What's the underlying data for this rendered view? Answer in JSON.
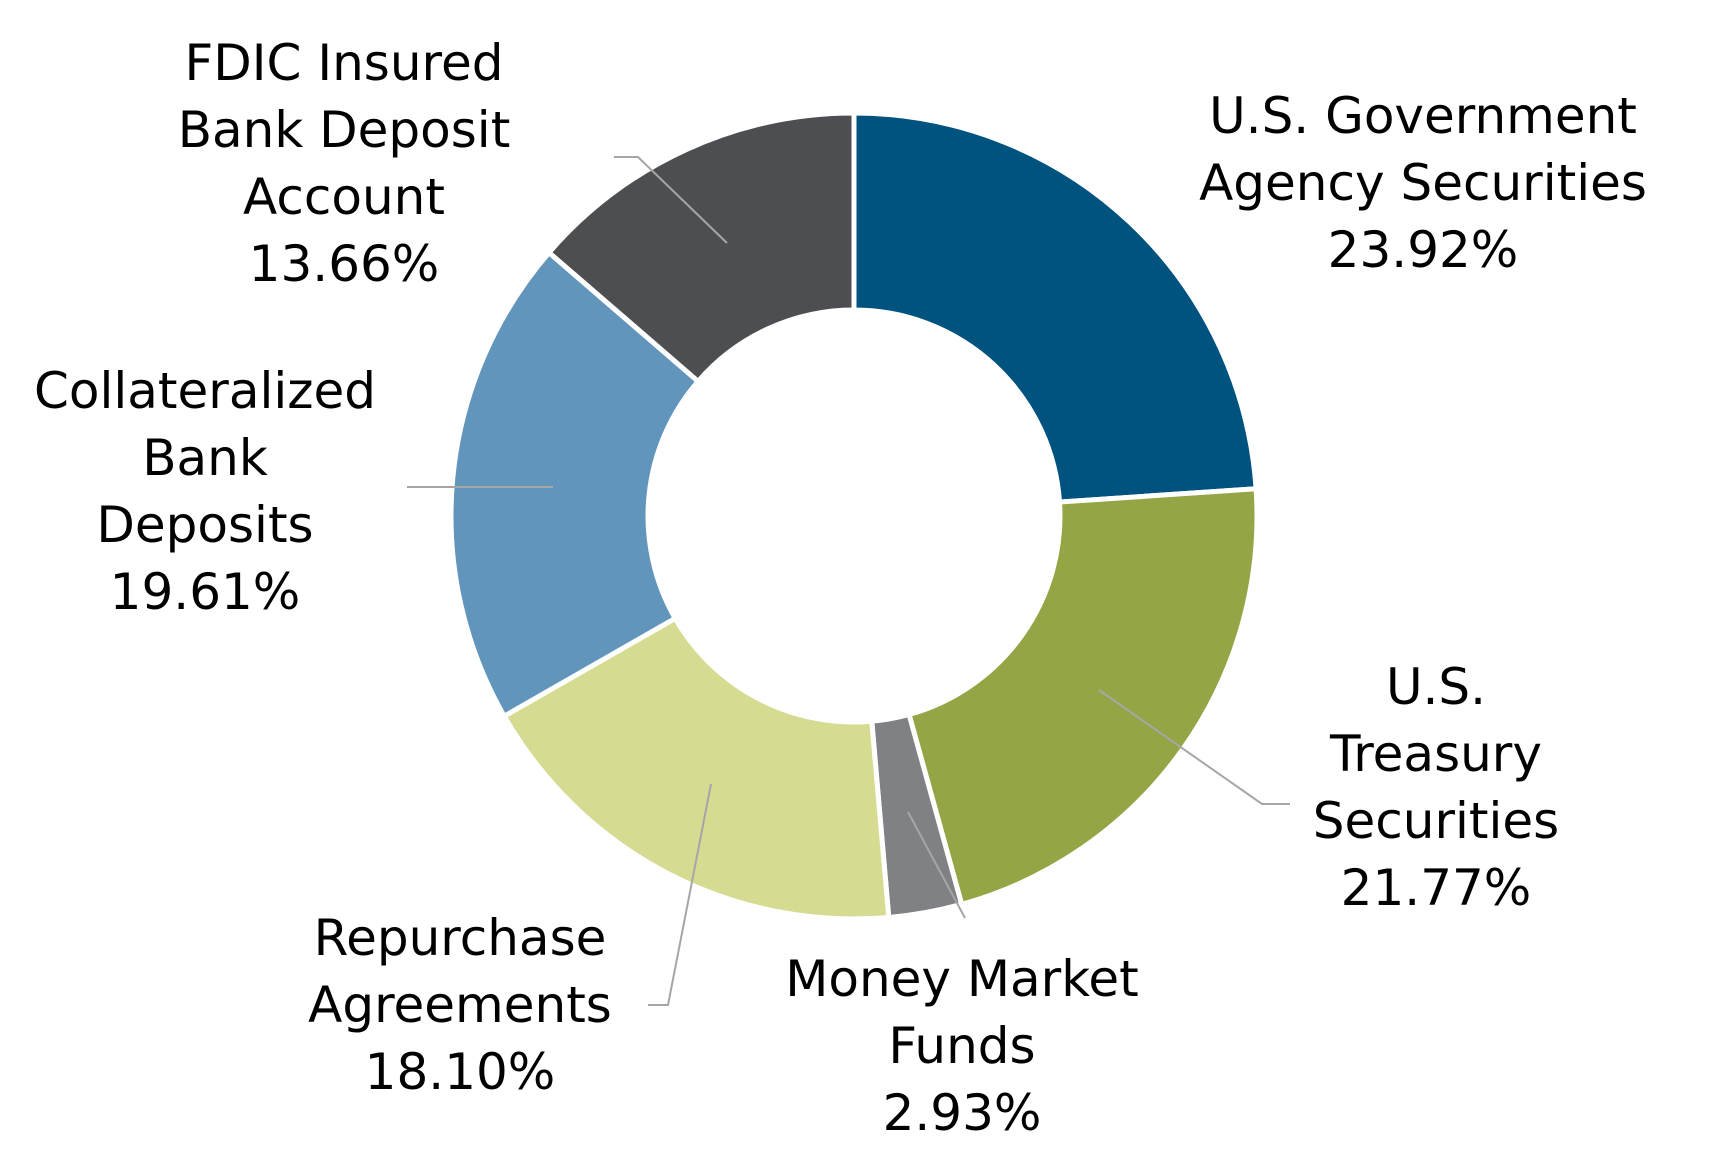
{
  "chart_data": {
    "type": "pie",
    "title": "",
    "donut": true,
    "legend": "none",
    "slices": [
      {
        "name": "U.S. Government Agency Securities",
        "label_lines": [
          "U.S. Government",
          "Agency Securities"
        ],
        "value": 23.92,
        "value_label": "23.92%",
        "color": "#00537f"
      },
      {
        "name": "U.S. Treasury Securities",
        "label_lines": [
          "U.S.",
          "Treasury",
          "Securities"
        ],
        "value": 21.77,
        "value_label": "21.77%",
        "color": "#94a545"
      },
      {
        "name": "Money Market Funds",
        "label_lines": [
          "Money Market",
          "Funds"
        ],
        "value": 2.93,
        "value_label": "2.93%",
        "color": "#808184"
      },
      {
        "name": "Repurchase Agreements",
        "label_lines": [
          "Repurchase",
          "Agreements"
        ],
        "value": 18.1,
        "value_label": "18.10%",
        "color": "#d5dc92"
      },
      {
        "name": "Collateralized Bank Deposits",
        "label_lines": [
          "Collateralized",
          "Bank",
          "Deposits"
        ],
        "value": 19.61,
        "value_label": "19.61%",
        "color": "#6195bb"
      },
      {
        "name": "FDIC Insured Bank Deposit Account",
        "label_lines": [
          "FDIC Insured",
          "Bank Deposit",
          "Account"
        ],
        "value": 13.66,
        "value_label": "13.66%",
        "color": "#4d4e51"
      }
    ]
  }
}
